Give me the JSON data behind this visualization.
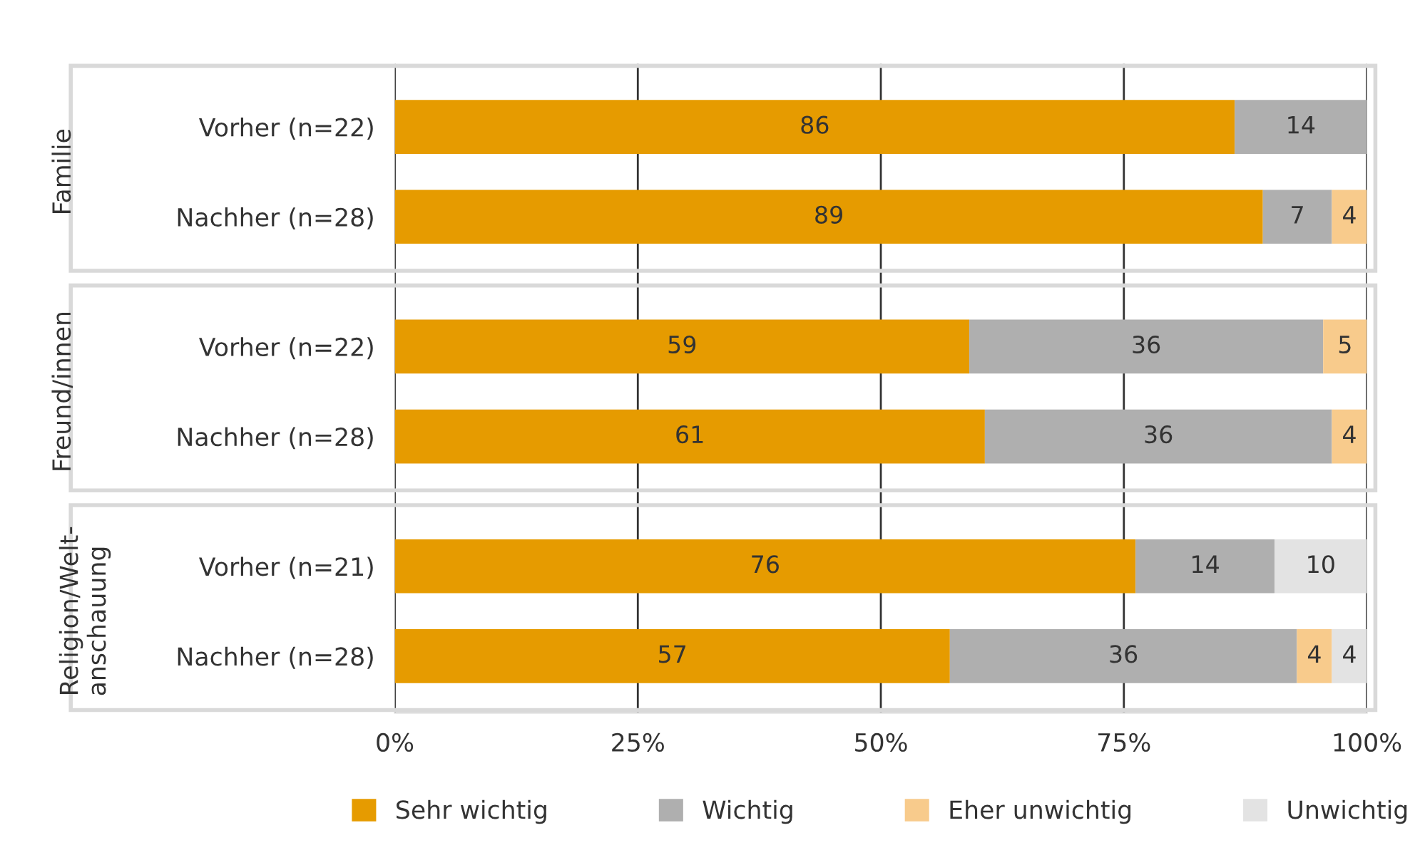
{
  "chart_data": {
    "type": "bar",
    "orientation": "horizontal",
    "stacked": true,
    "categories": [
      "Vorher (n=22)",
      "Nachher (n=28)",
      "Vorher (n=22)",
      "Nachher (n=28)",
      "Vorher (n=21)",
      "Nachher (n=28)"
    ],
    "annotations": [
      "Familie",
      "Freund/innen",
      "Religion/Welt-\nanschauung"
    ],
    "series": [
      {
        "name": "Sehr wichtig",
        "color": "#e69b00",
        "values": [
          86.4,
          89.3,
          59.1,
          60.7,
          76.2,
          57.1
        ],
        "value_labels": [
          "86",
          "89",
          "59",
          "61",
          "76",
          "57"
        ]
      },
      {
        "name": "Wichtig",
        "color": "#afafaf",
        "values": [
          13.6,
          7.1,
          36.4,
          35.7,
          14.3,
          35.7
        ],
        "value_labels": [
          "14",
          "7",
          "36",
          "36",
          "14",
          "36"
        ]
      },
      {
        "name": "Eher unwichtig",
        "color": "#f8cb8c",
        "values": [
          null,
          3.6,
          4.5,
          3.6,
          null,
          3.6
        ],
        "value_labels": [
          null,
          "4",
          "5",
          "4",
          null,
          "4"
        ]
      },
      {
        "name": "Unwichtig",
        "color": "#e3e3e3",
        "values": [
          null,
          null,
          null,
          null,
          9.5,
          3.6
        ],
        "value_labels": [
          null,
          null,
          null,
          null,
          "10",
          "4"
        ]
      }
    ],
    "xlim": [
      0,
      100
    ],
    "xticks": [
      {
        "value": 0,
        "label": "0%"
      },
      {
        "value": 25,
        "label": "25%"
      },
      {
        "value": 50,
        "label": "50%"
      },
      {
        "value": 75,
        "label": "75%"
      },
      {
        "value": 100,
        "label": "100%"
      }
    ],
    "grid": "x",
    "legend": "bottom"
  }
}
